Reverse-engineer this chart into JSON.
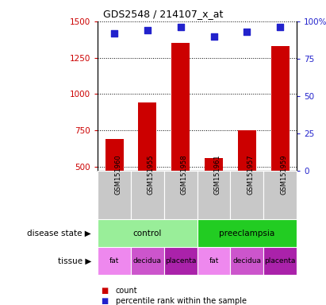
{
  "title": "GDS2548 / 214107_x_at",
  "samples": [
    "GSM151960",
    "GSM151955",
    "GSM151958",
    "GSM151961",
    "GSM151957",
    "GSM151959"
  ],
  "counts": [
    690,
    940,
    1350,
    560,
    750,
    1330
  ],
  "percentiles": [
    92,
    94,
    96,
    90,
    93,
    96
  ],
  "ylim_left": [
    470,
    1500
  ],
  "ylim_right": [
    0,
    100
  ],
  "yticks_left": [
    500,
    750,
    1000,
    1250,
    1500
  ],
  "yticks_right": [
    0,
    25,
    50,
    75,
    100
  ],
  "bar_color": "#cc0000",
  "dot_color": "#2222cc",
  "dot_size": 40,
  "disease_state_groups": [
    {
      "label": "control",
      "span": [
        0,
        3
      ],
      "color": "#99ee99"
    },
    {
      "label": "preeclampsia",
      "span": [
        3,
        6
      ],
      "color": "#22cc22"
    }
  ],
  "tissue_colors": [
    "#ee88ee",
    "#cc55cc",
    "#aa22aa"
  ],
  "tissue_labels": [
    "fat",
    "decidua",
    "placenta",
    "fat",
    "decidua",
    "placenta"
  ],
  "sample_bg_color": "#c8c8c8",
  "axis_color_left": "#cc0000",
  "axis_color_right": "#2222cc",
  "grid_color": "black",
  "legend_count_color": "#cc0000",
  "legend_pct_color": "#2222cc",
  "left_labels": [
    "disease state",
    "tissue"
  ],
  "figsize": [
    4.11,
    3.84
  ],
  "dpi": 100
}
